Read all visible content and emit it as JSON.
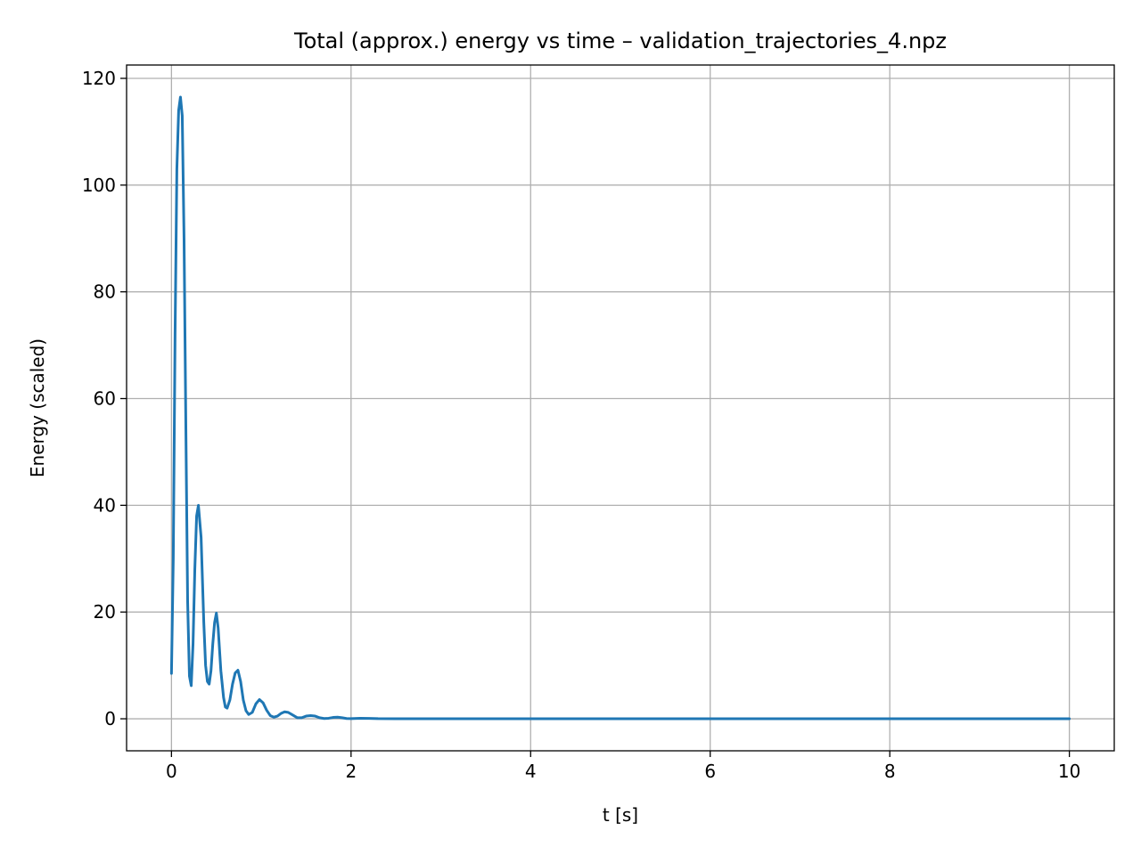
{
  "chart_data": {
    "type": "line",
    "title": "Total (approx.) energy vs time – validation_trajectories_4.npz",
    "xlabel": "t [s]",
    "ylabel": "Energy (scaled)",
    "xlim": [
      -0.5,
      10.5
    ],
    "ylim": [
      -6,
      122.5
    ],
    "xticks": [
      0,
      2,
      4,
      6,
      8,
      10
    ],
    "xtick_labels": [
      "0",
      "2",
      "4",
      "6",
      "8",
      "10"
    ],
    "yticks": [
      0,
      20,
      40,
      60,
      80,
      100,
      120
    ],
    "ytick_labels": [
      "0",
      "20",
      "40",
      "60",
      "80",
      "100",
      "120"
    ],
    "grid": true,
    "legend": "none",
    "series": [
      {
        "color": "#1f77b4",
        "x": [
          0.0,
          0.02,
          0.04,
          0.06,
          0.08,
          0.1,
          0.12,
          0.14,
          0.16,
          0.18,
          0.2,
          0.22,
          0.24,
          0.26,
          0.28,
          0.3,
          0.33,
          0.36,
          0.38,
          0.4,
          0.42,
          0.44,
          0.46,
          0.48,
          0.5,
          0.52,
          0.55,
          0.58,
          0.6,
          0.62,
          0.65,
          0.68,
          0.71,
          0.74,
          0.77,
          0.8,
          0.83,
          0.86,
          0.9,
          0.94,
          0.98,
          1.02,
          1.06,
          1.1,
          1.14,
          1.18,
          1.22,
          1.26,
          1.3,
          1.35,
          1.4,
          1.45,
          1.5,
          1.55,
          1.6,
          1.65,
          1.7,
          1.75,
          1.8,
          1.85,
          1.9,
          1.95,
          2.0,
          2.1,
          2.2,
          2.3,
          2.5,
          3.0,
          4.0,
          5.0,
          6.0,
          7.0,
          8.0,
          9.0,
          10.0
        ],
        "y": [
          8.5,
          30.0,
          72.0,
          103.0,
          114.0,
          116.5,
          113.0,
          90.0,
          55.0,
          22.0,
          8.0,
          6.2,
          14.0,
          28.0,
          38.0,
          40.0,
          34.0,
          18.0,
          10.0,
          7.0,
          6.5,
          9.0,
          14.0,
          18.0,
          19.8,
          17.0,
          9.0,
          4.0,
          2.2,
          2.0,
          3.5,
          6.5,
          8.6,
          9.1,
          7.0,
          3.5,
          1.5,
          0.8,
          1.2,
          2.8,
          3.6,
          3.0,
          1.6,
          0.6,
          0.3,
          0.5,
          1.0,
          1.3,
          1.2,
          0.7,
          0.2,
          0.2,
          0.5,
          0.6,
          0.5,
          0.2,
          0.05,
          0.1,
          0.25,
          0.3,
          0.2,
          0.05,
          0.02,
          0.1,
          0.08,
          0.02,
          0.01,
          0.0,
          0.0,
          0.0,
          0.0,
          0.0,
          0.0,
          0.0,
          0.0
        ]
      }
    ]
  }
}
